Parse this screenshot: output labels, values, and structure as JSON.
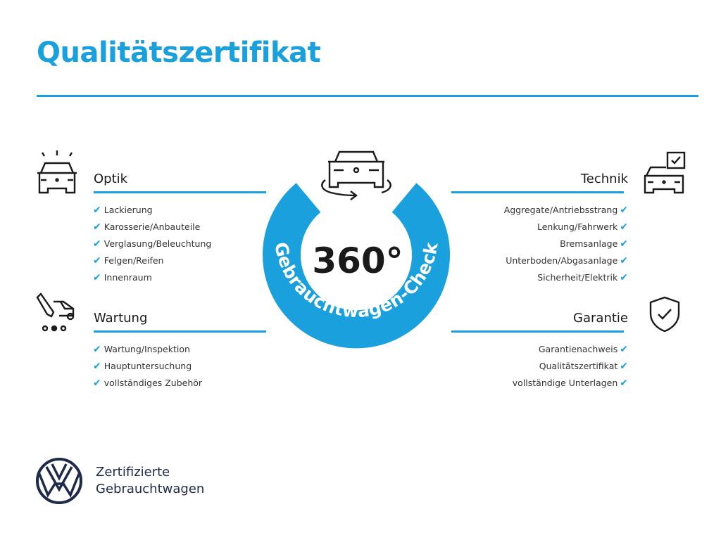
{
  "title": "Qualitätszertifikat",
  "center": {
    "number": "360°",
    "ring_text": "Gebrauchtwagen-Check"
  },
  "sections": {
    "optik": {
      "title": "Optik",
      "items": [
        "Lackierung",
        "Karosserie/Anbauteile",
        "Verglasung/Beleuchtung",
        "Felgen/Reifen",
        "Innenraum"
      ]
    },
    "wartung": {
      "title": "Wartung",
      "items": [
        "Wartung/Inspektion",
        "Hauptuntersuchung",
        "vollständiges Zubehör"
      ]
    },
    "technik": {
      "title": "Technik",
      "items": [
        "Aggregate/Antriebsstrang",
        "Lenkung/Fahrwerk",
        "Bremsanlage",
        "Unterboden/Abgasanlage",
        "Sicherheit/Elektrik"
      ]
    },
    "garantie": {
      "title": "Garantie",
      "items": [
        "Garantienachweis",
        "Qualitätszertifikat",
        "vollständige Unterlagen"
      ]
    }
  },
  "check_glyph": "✔",
  "brand": {
    "line1": "Zertifizierte",
    "line2": "Gebrauchtwagen",
    "logo": "VW"
  },
  "colors": {
    "accent": "#1aa0dc",
    "brand_navy": "#1e2a4a"
  }
}
